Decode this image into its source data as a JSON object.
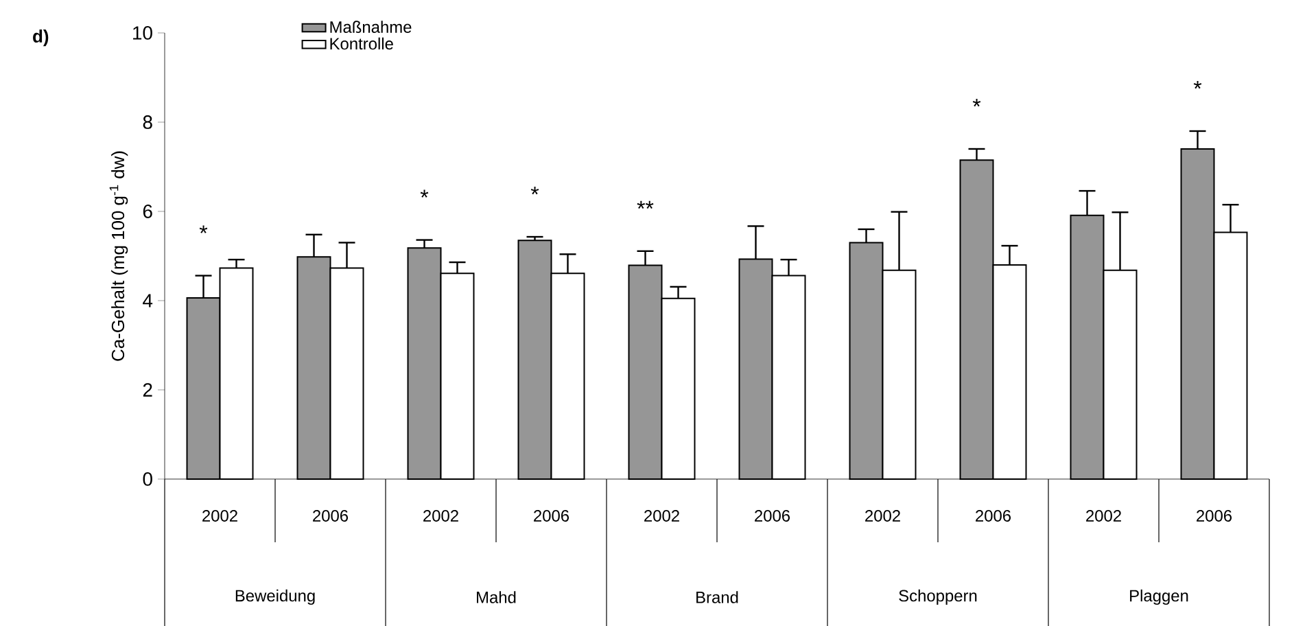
{
  "chart_data": {
    "type": "bar",
    "title": "d)",
    "ylabel": "Ca-Gehalt (mg 100 g$^{-1}$ dw)",
    "categories": [
      "2002",
      "2006",
      "2002",
      "2006",
      "2002",
      "2006",
      "2002",
      "2006",
      "2002",
      "2006"
    ],
    "annotations": [
      "Beweidung",
      "Mahd",
      "Brand",
      "Schoppern",
      "Plaggen"
    ],
    "series": [
      {
        "name": "Maßnahme",
        "color": "#969696",
        "values": [
          4.06,
          4.98,
          5.18,
          5.35,
          4.79,
          4.93,
          5.3,
          7.15,
          5.91,
          7.4
        ],
        "errors": [
          0.5,
          0.5,
          0.18,
          0.08,
          0.32,
          0.74,
          0.3,
          0.25,
          0.55,
          0.4
        ],
        "value_labels": [
          "*",
          null,
          "*",
          "*",
          "**",
          null,
          null,
          "*",
          null,
          "*"
        ]
      },
      {
        "name": "Kontrolle",
        "color": "#ffffff",
        "values": [
          4.73,
          4.73,
          4.61,
          4.61,
          4.05,
          4.56,
          4.68,
          4.8,
          4.68,
          5.53
        ],
        "errors": [
          0.19,
          0.57,
          0.25,
          0.43,
          0.26,
          0.36,
          1.31,
          0.43,
          1.3,
          0.62
        ]
      }
    ],
    "ylim": [
      0,
      10
    ],
    "yticks": [
      0,
      2,
      4,
      6,
      8,
      10
    ],
    "legend": "top left"
  }
}
